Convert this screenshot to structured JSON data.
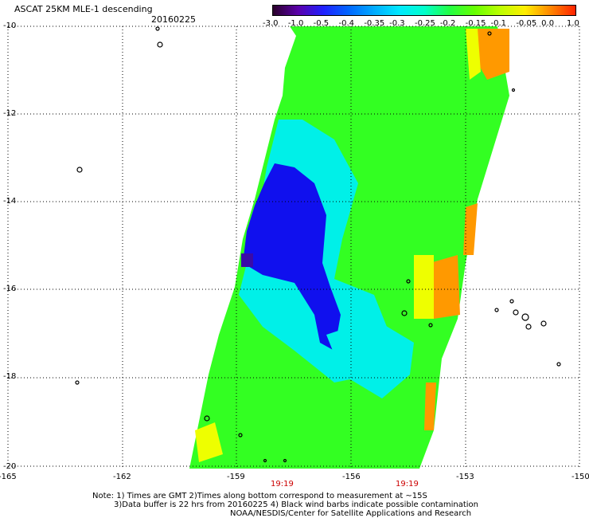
{
  "header": {
    "title": "ASCAT 25KM MLE-1 descending",
    "date": "20160225"
  },
  "colorbar": {
    "tick_labels": [
      "-3.0",
      "-1.0",
      "-0.5",
      "-0.4",
      "-0.35",
      "-0.3",
      "-0.25",
      "-0.2",
      "-0.15",
      "-0.1",
      "-0.05",
      "0.0",
      "1.0"
    ],
    "colors": [
      "#2a002a",
      "#5a00aa",
      "#2020ff",
      "#0066ff",
      "#00aaff",
      "#00e8ff",
      "#00ffcc",
      "#22ff44",
      "#66ff00",
      "#bbff00",
      "#ffee00",
      "#ff8800",
      "#ff2200"
    ]
  },
  "axes": {
    "lat_labels": [
      "-10",
      "-12",
      "-14",
      "-16",
      "-18",
      "-20"
    ],
    "lon_labels": [
      "-165",
      "-162",
      "-159",
      "-156",
      "-153",
      "-150"
    ]
  },
  "time_labels": [
    "19:19",
    "19:19"
  ],
  "notes": {
    "line1": "Note: 1) Times are GMT 2)Times along bottom correspond to measurement at ~15S",
    "line2": "3)Data buffer is 22 hrs from 20160225 4) Black wind barbs indicate possible contamination",
    "line3": "NOAA/NESDIS/Center for Satellite Applications and Research"
  },
  "map_colors": {
    "background": "#ffffff",
    "grid": "#000000",
    "green": "#33ff22",
    "cyan": "#00f0e8",
    "blue": "#1010ee",
    "orange": "#ff9900",
    "yellow": "#eeff00"
  }
}
